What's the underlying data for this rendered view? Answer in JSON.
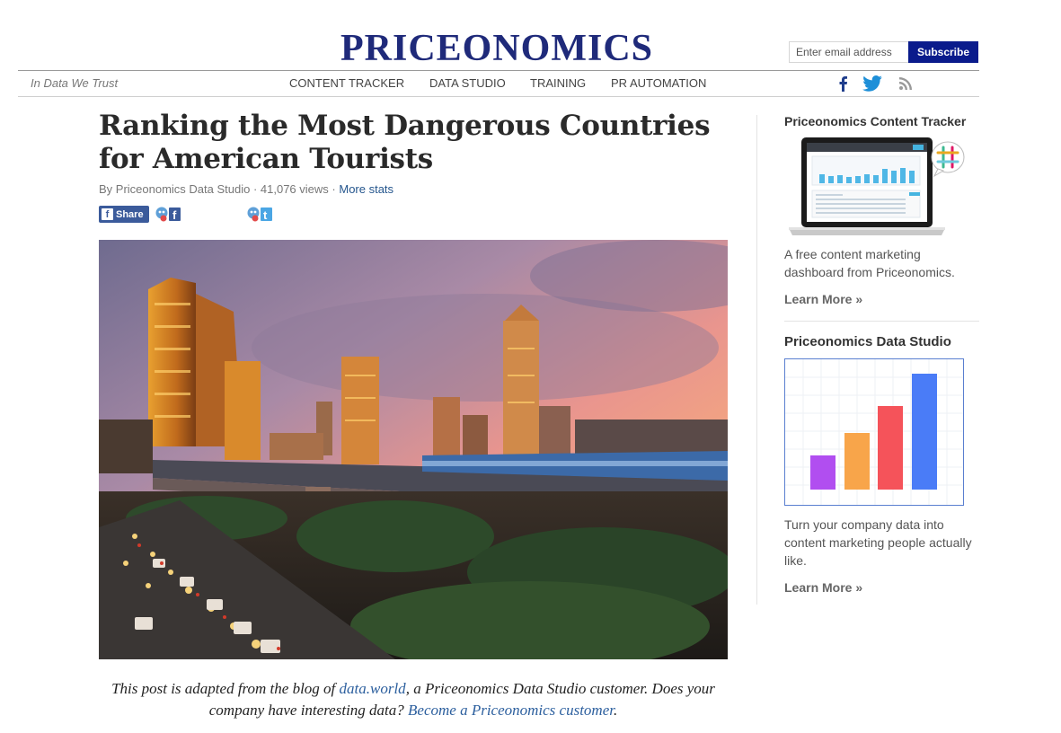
{
  "header": {
    "logo": "PRICEONOMICS",
    "email_placeholder": "Enter email address",
    "subscribe_label": "Subscribe",
    "tagline": "In Data We Trust",
    "nav": [
      "CONTENT TRACKER",
      "DATA STUDIO",
      "TRAINING",
      "PR AUTOMATION"
    ],
    "social_icons": [
      "facebook-icon",
      "twitter-icon",
      "rss-icon"
    ],
    "brand_color": "#1f2a7a",
    "subscribe_color": "#0a1b8c"
  },
  "article": {
    "title_line1": "Ranking the Most Dangerous Countries",
    "title_line2": "for American Tourists",
    "byline": "By Priceonomics Data Studio · 41,076 views ·",
    "more_stats": "More stats",
    "share_label": "Share",
    "caption_part1": "This post is adapted from the blog of",
    "caption_link1": "data.world",
    "caption_part2": ", a Priceonomics Data Studio customer. Does your company have interesting data?",
    "caption_link2": "Become a Priceonomics customer",
    "caption_part3": "."
  },
  "sidebar": {
    "content_tracker": {
      "title": "Priceonomics Content Tracker",
      "desc": "A free content marketing dashboard from Priceonomics.",
      "learn_more": "Learn More »"
    },
    "data_studio": {
      "title": "Priceonomics Data Studio",
      "desc": "Turn your company data into content marketing people actually like.",
      "learn_more": "Learn More »",
      "bar_colors": [
        "#b14ef0",
        "#f8a54a",
        "#f5535a",
        "#4a7cf7"
      ]
    }
  }
}
